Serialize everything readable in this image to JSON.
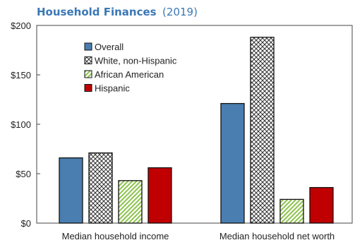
{
  "chart_data": {
    "type": "bar",
    "title": "Household Finances",
    "subtitle": "(2019)",
    "categories": [
      "Median household income",
      "Median household net worth"
    ],
    "ylim": [
      0,
      200
    ],
    "yticks": [
      "$0",
      "$50",
      "$100",
      "$150",
      "$200"
    ],
    "ytick_values": [
      0,
      50,
      100,
      150,
      200
    ],
    "legend_position": "top-left",
    "grid": false,
    "series": [
      {
        "name": "Overall",
        "values": [
          66,
          121
        ],
        "color": "#4a7eb0",
        "pattern": "solid"
      },
      {
        "name": "White, non-Hispanic",
        "values": [
          71,
          188
        ],
        "color": "#ffffff",
        "pattern": "crosshatch"
      },
      {
        "name": "African American",
        "values": [
          43,
          24
        ],
        "color": "#8bc34a",
        "pattern": "diagonal"
      },
      {
        "name": "Hispanic",
        "values": [
          56,
          36
        ],
        "color": "#c00000",
        "pattern": "solid"
      }
    ]
  }
}
